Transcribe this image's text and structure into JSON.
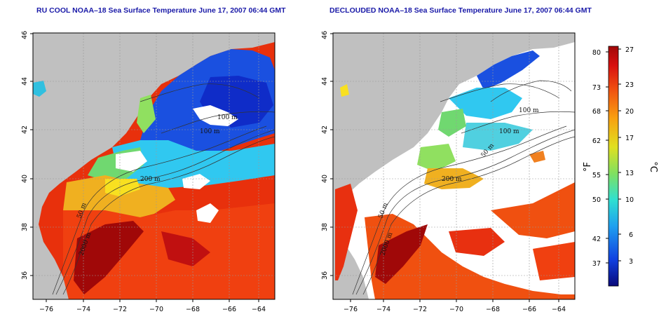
{
  "panels": [
    {
      "title": "RU COOL NOAA–18 Sea Surface Temperature June 17, 2007 06:44 GMT",
      "contour_labels": [
        "100 m",
        "100 m",
        "200 m",
        "50 m",
        "2000 m"
      ]
    },
    {
      "title": "DECLOUDED NOAA–18 Sea Surface Temperature June 17, 2007 06:44 GMT",
      "contour_labels": [
        "100 m",
        "100 m",
        "50 m",
        "200 m",
        "50 m",
        "2000 m"
      ]
    }
  ],
  "axes": {
    "x_ticks": [
      "−76",
      "−74",
      "−72",
      "−70",
      "−68",
      "−66",
      "−64"
    ],
    "y_ticks": [
      "36",
      "38",
      "40",
      "42",
      "44",
      "46"
    ],
    "lon_range": [
      -77,
      -63
    ],
    "lat_range": [
      35,
      46
    ]
  },
  "colorbar": {
    "fahrenheit_ticks": [
      "80",
      "73",
      "68",
      "62",
      "55",
      "50",
      "42",
      "37"
    ],
    "celsius_ticks": [
      "27",
      "23",
      "20",
      "17",
      "13",
      "10",
      "6",
      "3"
    ],
    "fahrenheit_label": "°F",
    "celsius_label": "°C",
    "colors": [
      "#0a0a7a",
      "#1040e0",
      "#1fa0f0",
      "#30e0d0",
      "#80e060",
      "#e0e020",
      "#f8a010",
      "#f05010",
      "#d81010",
      "#a00808"
    ]
  },
  "colors": {
    "land": "#c0c0c0",
    "cloud": "#ffffff",
    "contour": "#333333",
    "title": "#1a1aa8",
    "grid": "#999999"
  }
}
